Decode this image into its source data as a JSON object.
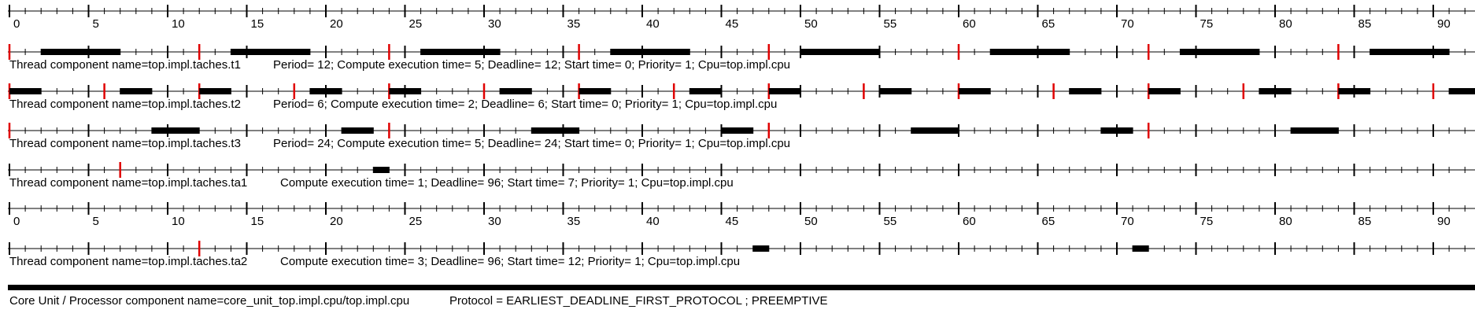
{
  "colors": {
    "axis": "#000000",
    "release": "#e00000",
    "execution": "#000000",
    "background": "#ffffff"
  },
  "time_axis": {
    "start": 0,
    "end": 93,
    "minor_step": 1,
    "major_step": 5,
    "labels": [
      "0",
      "5",
      "10",
      "15",
      "20",
      "25",
      "30",
      "35",
      "40",
      "45",
      "50",
      "55",
      "60",
      "65",
      "70",
      "75",
      "80",
      "85",
      "90"
    ]
  },
  "tasks": [
    {
      "id": "t1",
      "name_text": "Thread component name=top.impl.taches.t1",
      "params_text": "Period= 12; Compute execution time= 5; Deadline= 12; Start time= 0; Priority= 1; Cpu=top.impl.cpu",
      "releases": [
        0,
        12,
        24,
        36,
        48,
        60,
        72,
        84
      ],
      "executions": [
        [
          2,
          7
        ],
        [
          14,
          19
        ],
        [
          26,
          31
        ],
        [
          38,
          43
        ],
        [
          50,
          55
        ],
        [
          62,
          67
        ],
        [
          74,
          79
        ],
        [
          86,
          91
        ]
      ]
    },
    {
      "id": "t2",
      "name_text": "Thread component name=top.impl.taches.t2",
      "params_text": "Period= 6; Compute execution time= 2; Deadline= 6; Start time= 0; Priority= 1; Cpu=top.impl.cpu",
      "releases": [
        0,
        6,
        12,
        18,
        24,
        30,
        36,
        42,
        48,
        54,
        60,
        66,
        72,
        78,
        84,
        90
      ],
      "executions": [
        [
          0,
          2
        ],
        [
          7,
          9
        ],
        [
          12,
          14
        ],
        [
          19,
          21
        ],
        [
          24,
          26
        ],
        [
          31,
          33
        ],
        [
          36,
          38
        ],
        [
          43,
          45
        ],
        [
          48,
          50
        ],
        [
          55,
          57
        ],
        [
          60,
          62
        ],
        [
          67,
          69
        ],
        [
          72,
          74
        ],
        [
          79,
          81
        ],
        [
          84,
          86
        ],
        [
          91,
          93
        ]
      ]
    },
    {
      "id": "t3",
      "name_text": "Thread component name=top.impl.taches.t3",
      "params_text": "Period= 24; Compute execution time= 5; Deadline= 24; Start time= 0; Priority= 1; Cpu=top.impl.cpu",
      "releases": [
        0,
        24,
        48,
        72
      ],
      "executions": [
        [
          9,
          12
        ],
        [
          21,
          23
        ],
        [
          33,
          36
        ],
        [
          45,
          47
        ],
        [
          57,
          60
        ],
        [
          69,
          71
        ],
        [
          81,
          84
        ]
      ]
    },
    {
      "id": "ta1",
      "name_text": "Thread component name=top.impl.taches.ta1",
      "params_text": "Compute execution time= 1; Deadline= 96; Start time= 7; Priority= 1; Cpu=top.impl.cpu",
      "releases": [
        7
      ],
      "executions": [
        [
          23,
          24
        ]
      ]
    },
    {
      "id": "ta2",
      "name_text": "Thread component name=top.impl.taches.ta2",
      "params_text": "Compute execution time= 3; Deadline= 96; Start time= 12; Priority= 1; Cpu=top.impl.cpu",
      "releases": [
        12
      ],
      "executions": [
        [
          47,
          48
        ],
        [
          71,
          72
        ]
      ]
    }
  ],
  "processor": {
    "name_text": "Core Unit / Processor component name=core_unit_top.impl.cpu/top.impl.cpu",
    "protocol_text": "Protocol = EARLIEST_DEADLINE_FIRST_PROTOCOL ; PREEMPTIVE"
  }
}
